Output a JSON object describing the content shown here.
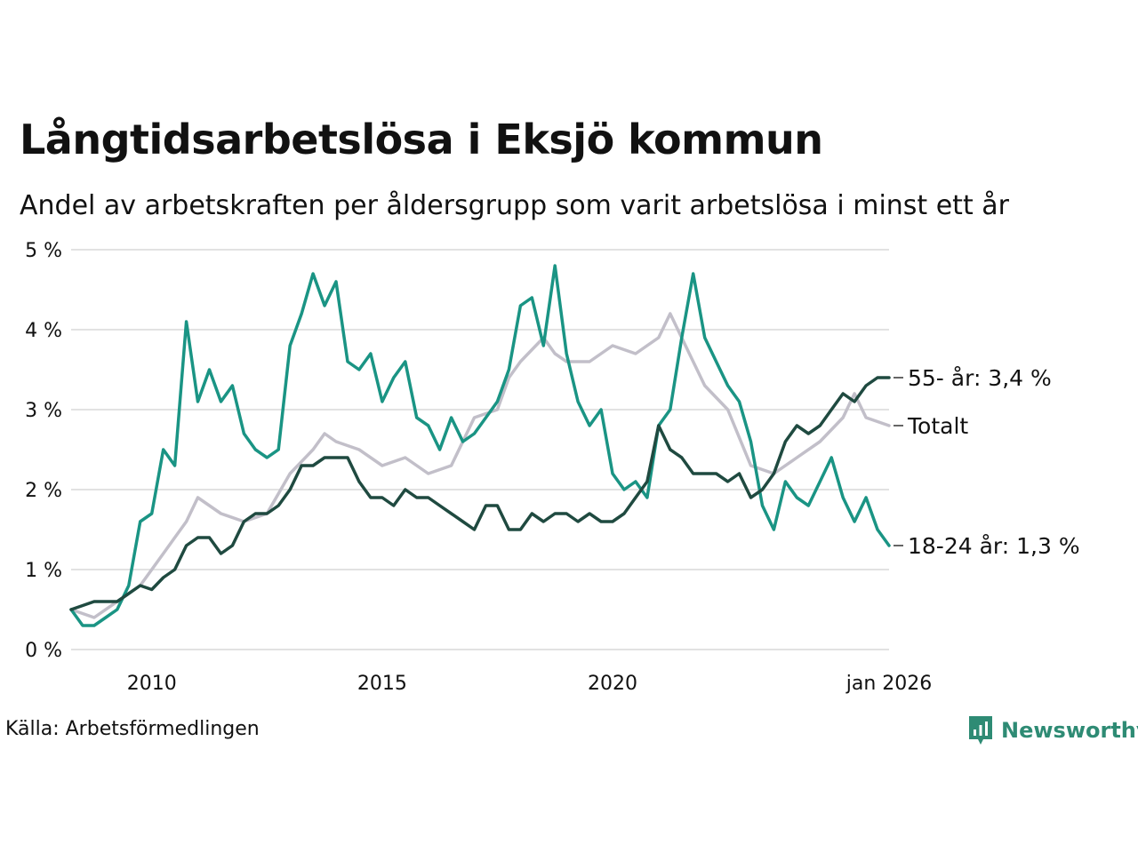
{
  "title": "Långtidsarbetslösa i Eksjö kommun",
  "subtitle": "Andel av arbetskraften per åldersgrupp som varit arbetslösa i minst ett år",
  "source": "Källa: Arbetsförmedlingen",
  "brand": "Newsworthy",
  "chart_data": {
    "type": "line",
    "y_unit": "%",
    "ylim": [
      0,
      5
    ],
    "xlim": [
      2008.25,
      2026.0
    ],
    "y_ticks": [
      0,
      1,
      2,
      3,
      4,
      5
    ],
    "y_tick_labels": [
      "0 %",
      "1 %",
      "2 %",
      "3 %",
      "4 %",
      "5 %"
    ],
    "x_ticks": [
      2010,
      2015,
      2020,
      2026.0
    ],
    "x_tick_labels": [
      "2010",
      "2015",
      "2020",
      "jan 2026"
    ],
    "grid": true,
    "series": [
      {
        "name": "Totalt",
        "end_label": "Totalt",
        "color": "#c2bfc9",
        "x": [
          2008.25,
          2008.75,
          2009.25,
          2009.75,
          2010.25,
          2010.5,
          2010.75,
          2011.0,
          2011.5,
          2012.0,
          2012.5,
          2013.0,
          2013.5,
          2013.75,
          2014.0,
          2014.5,
          2015.0,
          2015.5,
          2016.0,
          2016.5,
          2017.0,
          2017.5,
          2017.75,
          2018.0,
          2018.5,
          2018.75,
          2019.0,
          2019.5,
          2020.0,
          2020.5,
          2021.0,
          2021.25,
          2021.75,
          2022.0,
          2022.5,
          2023.0,
          2023.5,
          2024.0,
          2024.5,
          2025.0,
          2025.25,
          2025.5,
          2026.0
        ],
        "values": [
          0.5,
          0.4,
          0.6,
          0.8,
          1.2,
          1.4,
          1.6,
          1.9,
          1.7,
          1.6,
          1.7,
          2.2,
          2.5,
          2.7,
          2.6,
          2.5,
          2.3,
          2.4,
          2.2,
          2.3,
          2.9,
          3.0,
          3.4,
          3.6,
          3.9,
          3.7,
          3.6,
          3.6,
          3.8,
          3.7,
          3.9,
          4.2,
          3.6,
          3.3,
          3.0,
          2.3,
          2.2,
          2.4,
          2.6,
          2.9,
          3.2,
          2.9,
          2.8
        ],
        "end_value": 2.8
      },
      {
        "name": "18-24 år",
        "end_label": "18-24 år: 1,3 %",
        "color": "#1a9484",
        "x": [
          2008.25,
          2008.5,
          2008.75,
          2009.0,
          2009.25,
          2009.5,
          2009.75,
          2010.0,
          2010.25,
          2010.5,
          2010.75,
          2011.0,
          2011.25,
          2011.5,
          2011.75,
          2012.0,
          2012.25,
          2012.5,
          2012.75,
          2013.0,
          2013.25,
          2013.5,
          2013.75,
          2014.0,
          2014.25,
          2014.5,
          2014.75,
          2015.0,
          2015.25,
          2015.5,
          2015.75,
          2016.0,
          2016.25,
          2016.5,
          2016.75,
          2017.0,
          2017.25,
          2017.5,
          2017.75,
          2018.0,
          2018.25,
          2018.5,
          2018.75,
          2019.0,
          2019.25,
          2019.5,
          2019.75,
          2020.0,
          2020.25,
          2020.5,
          2020.75,
          2021.0,
          2021.25,
          2021.5,
          2021.75,
          2022.0,
          2022.25,
          2022.5,
          2022.75,
          2023.0,
          2023.25,
          2023.5,
          2023.75,
          2024.0,
          2024.25,
          2024.5,
          2024.75,
          2025.0,
          2025.25,
          2025.5,
          2025.75,
          2026.0
        ],
        "values": [
          0.5,
          0.3,
          0.3,
          0.4,
          0.5,
          0.8,
          1.6,
          1.7,
          2.5,
          2.3,
          4.1,
          3.1,
          3.5,
          3.1,
          3.3,
          2.7,
          2.5,
          2.4,
          2.5,
          3.8,
          4.2,
          4.7,
          4.3,
          4.6,
          3.6,
          3.5,
          3.7,
          3.1,
          3.4,
          3.6,
          2.9,
          2.8,
          2.5,
          2.9,
          2.6,
          2.7,
          2.9,
          3.1,
          3.5,
          4.3,
          4.4,
          3.8,
          4.8,
          3.7,
          3.1,
          2.8,
          3.0,
          2.2,
          2.0,
          2.1,
          1.9,
          2.8,
          3.0,
          3.9,
          4.7,
          3.9,
          3.6,
          3.3,
          3.1,
          2.6,
          1.8,
          1.5,
          2.1,
          1.9,
          1.8,
          2.1,
          2.4,
          1.9,
          1.6,
          1.9,
          1.5,
          1.3
        ],
        "end_value": 1.3
      },
      {
        "name": "55- år",
        "end_label": "55- år: 3,4 %",
        "color": "#1f4a40",
        "x": [
          2008.25,
          2008.5,
          2008.75,
          2009.0,
          2009.25,
          2009.5,
          2009.75,
          2010.0,
          2010.25,
          2010.5,
          2010.75,
          2011.0,
          2011.25,
          2011.5,
          2011.75,
          2012.0,
          2012.25,
          2012.5,
          2012.75,
          2013.0,
          2013.25,
          2013.5,
          2013.75,
          2014.0,
          2014.25,
          2014.5,
          2014.75,
          2015.0,
          2015.25,
          2015.5,
          2015.75,
          2016.0,
          2016.25,
          2016.5,
          2016.75,
          2017.0,
          2017.25,
          2017.5,
          2017.75,
          2018.0,
          2018.25,
          2018.5,
          2018.75,
          2019.0,
          2019.25,
          2019.5,
          2019.75,
          2020.0,
          2020.25,
          2020.5,
          2020.75,
          2021.0,
          2021.25,
          2021.5,
          2021.75,
          2022.0,
          2022.25,
          2022.5,
          2022.75,
          2023.0,
          2023.25,
          2023.5,
          2023.75,
          2024.0,
          2024.25,
          2024.5,
          2024.75,
          2025.0,
          2025.25,
          2025.5,
          2025.75,
          2026.0
        ],
        "values": [
          0.5,
          0.55,
          0.6,
          0.6,
          0.6,
          0.7,
          0.8,
          0.75,
          0.9,
          1.0,
          1.3,
          1.4,
          1.4,
          1.2,
          1.3,
          1.6,
          1.7,
          1.7,
          1.8,
          2.0,
          2.3,
          2.3,
          2.4,
          2.4,
          2.4,
          2.1,
          1.9,
          1.9,
          1.8,
          2.0,
          1.9,
          1.9,
          1.8,
          1.7,
          1.6,
          1.5,
          1.8,
          1.8,
          1.5,
          1.5,
          1.7,
          1.6,
          1.7,
          1.7,
          1.6,
          1.7,
          1.6,
          1.6,
          1.7,
          1.9,
          2.1,
          2.8,
          2.5,
          2.4,
          2.2,
          2.2,
          2.2,
          2.1,
          2.2,
          1.9,
          2.0,
          2.2,
          2.6,
          2.8,
          2.7,
          2.8,
          3.0,
          3.2,
          3.1,
          3.3,
          3.4,
          3.4
        ],
        "end_value": 3.4
      }
    ]
  }
}
